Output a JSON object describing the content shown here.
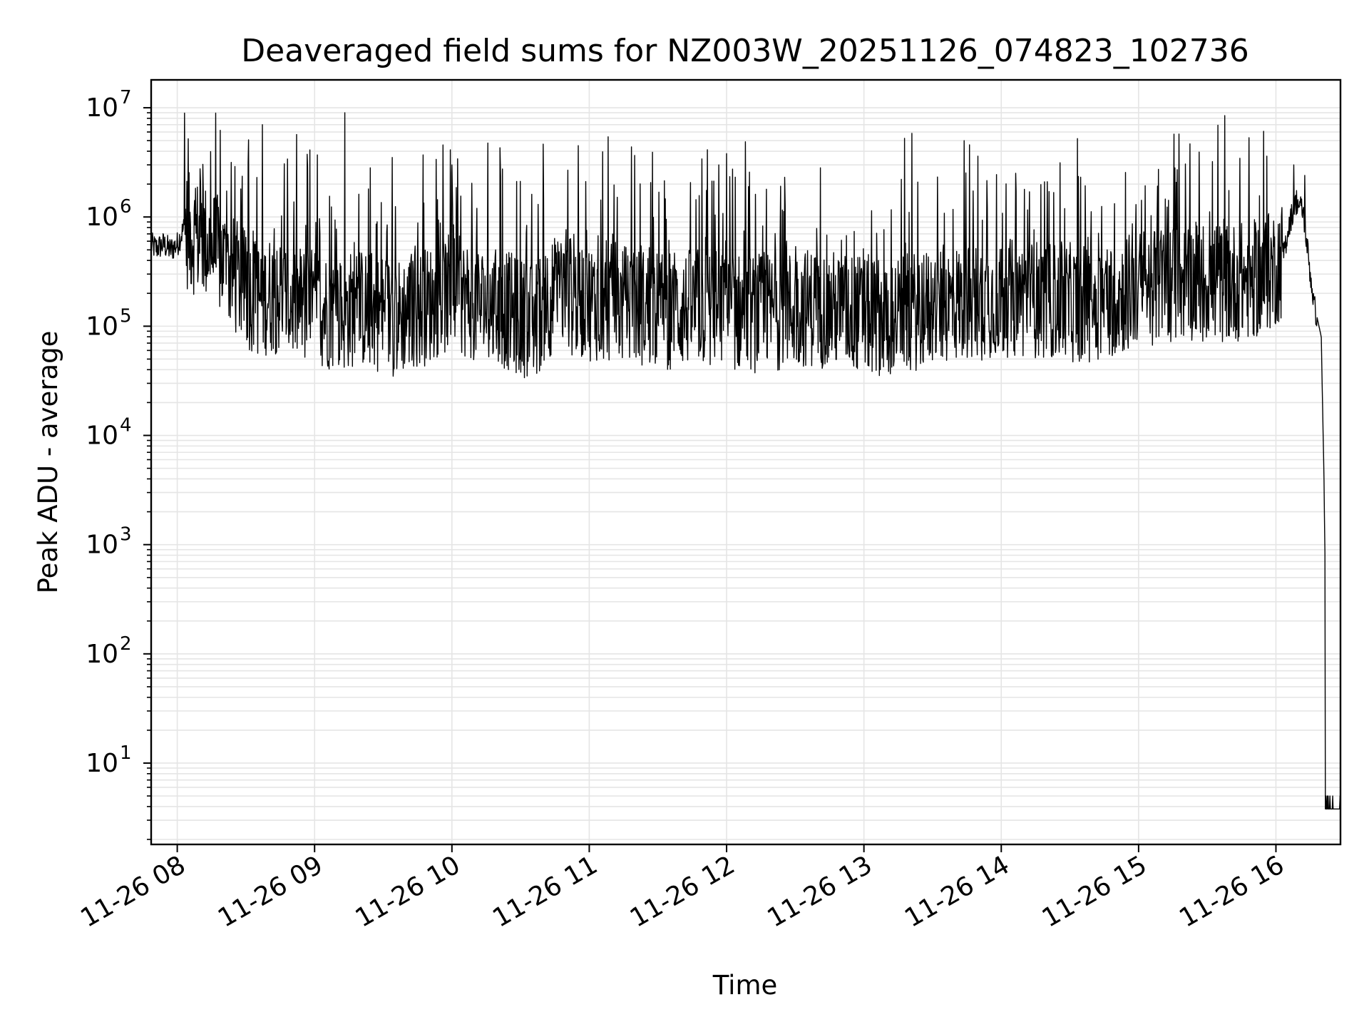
{
  "chart_data": {
    "type": "line",
    "title": "Deaveraged field sums for NZ003W_20251126_074823_102736",
    "xlabel": "Time",
    "ylabel": "Peak ADU - average",
    "yscale": "log",
    "ylim": [
      1.8,
      18000000
    ],
    "xlim_hours": [
      7.81,
      16.47
    ],
    "grid": true,
    "line_color": "#000000",
    "grid_color": "#e5e5e5",
    "x_ticks": [
      {
        "hour": 8,
        "label": "11-26 08"
      },
      {
        "hour": 9,
        "label": "11-26 09"
      },
      {
        "hour": 10,
        "label": "11-26 10"
      },
      {
        "hour": 11,
        "label": "11-26 11"
      },
      {
        "hour": 12,
        "label": "11-26 12"
      },
      {
        "hour": 13,
        "label": "11-26 13"
      },
      {
        "hour": 14,
        "label": "11-26 14"
      },
      {
        "hour": 15,
        "label": "11-26 15"
      },
      {
        "hour": 16,
        "label": "11-26 16"
      }
    ],
    "y_ticks": [
      {
        "exp": 1,
        "base": "10",
        "power": "1"
      },
      {
        "exp": 2,
        "base": "10",
        "power": "2"
      },
      {
        "exp": 3,
        "base": "10",
        "power": "3"
      },
      {
        "exp": 4,
        "base": "10",
        "power": "4"
      },
      {
        "exp": 5,
        "base": "10",
        "power": "5"
      },
      {
        "exp": 6,
        "base": "10",
        "power": "6"
      },
      {
        "exp": 7,
        "base": "10",
        "power": "7"
      }
    ],
    "series": [
      {
        "name": "peak ADU - average",
        "x_hours": [
          7.81,
          7.85,
          7.9,
          7.95,
          8.0,
          8.05,
          8.1,
          8.2,
          8.3,
          8.4,
          8.5,
          8.6,
          8.7,
          8.8,
          8.9,
          9.0,
          9.1,
          9.2,
          9.3,
          9.4,
          9.5,
          9.6,
          9.7,
          9.8,
          9.9,
          10.0,
          10.1,
          10.2,
          10.3,
          10.4,
          10.5,
          10.6,
          10.7,
          10.8,
          10.9,
          11.0,
          11.2,
          11.4,
          11.6,
          11.8,
          12.0,
          12.2,
          12.4,
          12.6,
          12.8,
          13.0,
          13.2,
          13.4,
          13.6,
          13.8,
          14.0,
          14.2,
          14.4,
          14.6,
          14.8,
          15.0,
          15.2,
          15.4,
          15.6,
          15.8,
          15.9,
          16.0,
          16.05,
          16.1,
          16.15,
          16.2,
          16.25,
          16.28,
          16.3,
          16.33,
          16.35,
          16.36,
          16.38,
          16.4,
          16.42,
          16.47
        ],
        "baseline": [
          550000,
          520000,
          560000,
          500000,
          560000,
          800000,
          700000,
          600000,
          450000,
          300000,
          220000,
          180000,
          200000,
          170000,
          160000,
          150000,
          140000,
          130000,
          150000,
          140000,
          130000,
          120000,
          140000,
          150000,
          180000,
          200000,
          180000,
          160000,
          150000,
          140000,
          120000,
          110000,
          180000,
          200000,
          180000,
          170000,
          160000,
          150000,
          140000,
          150000,
          140000,
          130000,
          140000,
          150000,
          140000,
          130000,
          120000,
          140000,
          160000,
          170000,
          180000,
          180000,
          170000,
          160000,
          180000,
          220000,
          250000,
          260000,
          250000,
          260000,
          280000,
          350000,
          420000,
          900000,
          1400000,
          1100000,
          300000,
          150000,
          120000,
          80000,
          4000,
          400,
          4,
          4,
          4,
          4
        ],
        "spike_peaks": [
          {
            "hour": 8.08,
            "value": 5200000
          },
          {
            "hour": 8.42,
            "value": 2900000
          },
          {
            "hour": 8.58,
            "value": 2300000
          },
          {
            "hour": 8.62,
            "value": 7000000
          },
          {
            "hour": 9.02,
            "value": 3700000
          },
          {
            "hour": 9.22,
            "value": 9000000
          },
          {
            "hour": 9.79,
            "value": 3700000
          },
          {
            "hour": 10.0,
            "value": 3000000
          },
          {
            "hour": 10.35,
            "value": 4300000
          },
          {
            "hour": 10.92,
            "value": 4500000
          },
          {
            "hour": 11.82,
            "value": 3400000
          },
          {
            "hour": 12.0,
            "value": 3800000
          },
          {
            "hour": 13.73,
            "value": 5000000
          },
          {
            "hour": 13.83,
            "value": 3600000
          },
          {
            "hour": 16.13,
            "value": 3000000
          },
          {
            "hour": 16.21,
            "value": 2400000
          }
        ]
      }
    ]
  }
}
